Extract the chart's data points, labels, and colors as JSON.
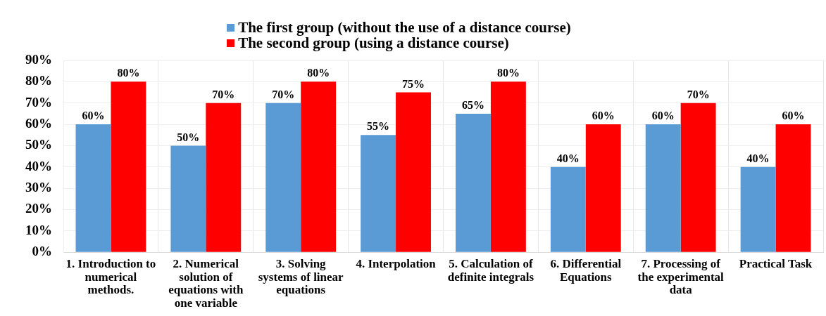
{
  "chart_data": {
    "type": "bar",
    "categories": [
      "1. Introduction to numerical methods.",
      "2. Numerical solution of equations with one variable",
      "3. Solving systems of linear equations",
      "4. Interpolation",
      "5. Calculation of definite integrals",
      "6. Differential Equations",
      "7. Processing of the experimental data",
      "Practical Task"
    ],
    "series": [
      {
        "name": "The first group (without the use of a distance course)",
        "color": "#5b9bd5",
        "values": [
          60,
          50,
          70,
          55,
          65,
          40,
          60,
          40
        ],
        "value_labels": [
          "60%",
          "50%",
          "70%",
          "55%",
          "65%",
          "40%",
          "60%",
          "40%"
        ]
      },
      {
        "name": "The second group (using a distance course)",
        "color": "#ff0000",
        "values": [
          80,
          70,
          80,
          75,
          80,
          60,
          70,
          60
        ],
        "value_labels": [
          "80%",
          "70%",
          "80%",
          "75%",
          "80%",
          "60%",
          "70%",
          "60%"
        ]
      }
    ],
    "ylim": [
      0,
      90
    ],
    "yticks": [
      {
        "value": 0,
        "label": "0%"
      },
      {
        "value": 10,
        "label": "10%"
      },
      {
        "value": 20,
        "label": "20%"
      },
      {
        "value": 30,
        "label": "30%"
      },
      {
        "value": 40,
        "label": "40%"
      },
      {
        "value": 50,
        "label": "50%"
      },
      {
        "value": 60,
        "label": "60%"
      },
      {
        "value": 70,
        "label": "70%"
      },
      {
        "value": 80,
        "label": "80%"
      },
      {
        "value": 90,
        "label": "90%"
      }
    ],
    "grid": true,
    "legend": "top"
  }
}
